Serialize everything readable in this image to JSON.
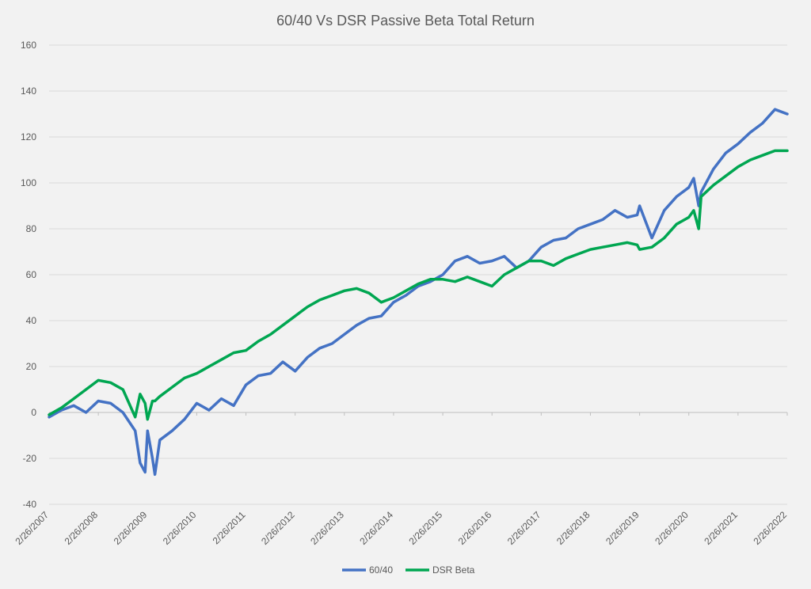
{
  "chart_data": {
    "type": "line",
    "title": "60/40 Vs DSR Passive Beta Total Return",
    "xlabel": "",
    "ylabel": "",
    "ylim": [
      -40,
      160
    ],
    "yticks": [
      -40,
      -20,
      0,
      20,
      40,
      60,
      80,
      100,
      120,
      140,
      160
    ],
    "x_tick_labels": [
      "2/26/2007",
      "2/26/2008",
      "2/26/2009",
      "2/26/2010",
      "2/26/2011",
      "2/26/2012",
      "2/26/2013",
      "2/26/2014",
      "2/26/2015",
      "2/26/2016",
      "2/26/2017",
      "2/26/2018",
      "2/26/2019",
      "2/26/2020",
      "2/26/2021",
      "2/26/2022"
    ],
    "grid": true,
    "legend_position": "bottom",
    "x": [
      2007.0,
      2007.25,
      2007.5,
      2007.75,
      2008.0,
      2008.25,
      2008.5,
      2008.75,
      2008.85,
      2008.95,
      2009.0,
      2009.1,
      2009.15,
      2009.25,
      2009.5,
      2009.75,
      2010.0,
      2010.25,
      2010.5,
      2010.75,
      2011.0,
      2011.25,
      2011.5,
      2011.75,
      2012.0,
      2012.25,
      2012.5,
      2012.75,
      2013.0,
      2013.25,
      2013.5,
      2013.75,
      2014.0,
      2014.25,
      2014.5,
      2014.75,
      2015.0,
      2015.25,
      2015.5,
      2015.75,
      2016.0,
      2016.25,
      2016.5,
      2016.75,
      2017.0,
      2017.25,
      2017.5,
      2017.75,
      2018.0,
      2018.25,
      2018.5,
      2018.75,
      2018.95,
      2019.0,
      2019.25,
      2019.5,
      2019.75,
      2020.0,
      2020.1,
      2020.2,
      2020.25,
      2020.5,
      2020.75,
      2021.0,
      2021.25,
      2021.5,
      2021.75,
      2022.0
    ],
    "series": [
      {
        "name": "60/40",
        "color": "#4472c4",
        "values": [
          -2,
          1,
          3,
          0,
          5,
          4,
          0,
          -8,
          -22,
          -26,
          -8,
          -20,
          -27,
          -12,
          -8,
          -3,
          4,
          1,
          6,
          3,
          12,
          16,
          17,
          22,
          18,
          24,
          28,
          30,
          34,
          38,
          41,
          42,
          48,
          51,
          55,
          57,
          60,
          66,
          68,
          65,
          66,
          68,
          63,
          66,
          72,
          75,
          76,
          80,
          82,
          84,
          88,
          85,
          86,
          90,
          76,
          88,
          94,
          98,
          102,
          90,
          96,
          106,
          113,
          117,
          122,
          126,
          132,
          130
        ]
      },
      {
        "name": "DSR Beta",
        "color": "#00a651",
        "values": [
          -1,
          2,
          6,
          10,
          14,
          13,
          10,
          -2,
          8,
          4,
          -3,
          5,
          5,
          7,
          11,
          15,
          17,
          20,
          23,
          26,
          27,
          31,
          34,
          38,
          42,
          46,
          49,
          51,
          53,
          54,
          52,
          48,
          50,
          53,
          56,
          58,
          58,
          57,
          59,
          57,
          55,
          60,
          63,
          66,
          66,
          64,
          67,
          69,
          71,
          72,
          73,
          74,
          73,
          71,
          72,
          76,
          82,
          85,
          88,
          80,
          94,
          99,
          103,
          107,
          110,
          112,
          114,
          114
        ]
      }
    ]
  }
}
